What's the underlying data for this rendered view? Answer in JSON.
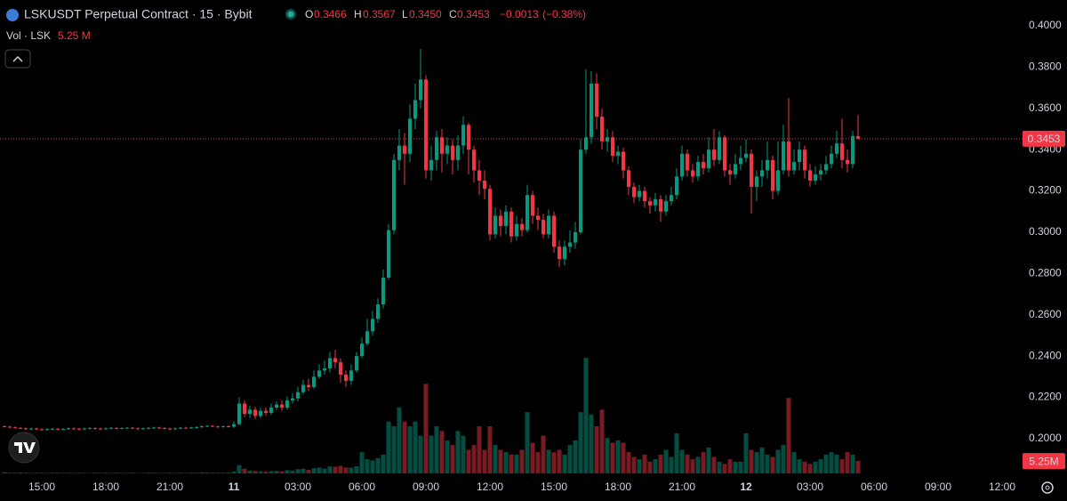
{
  "chart_data": {
    "type": "candlestick",
    "title": "LSKUSDT Perpetual Contract · 15 · Bybit",
    "legend": {
      "o": "O",
      "h": "H",
      "l": "L",
      "c": "C",
      "open": {
        "value": 0.3466,
        "label": "0.3466"
      },
      "high": {
        "value": 0.3567,
        "label": "0.3567"
      },
      "low": {
        "value": 0.345,
        "label": "0.3450"
      },
      "close": {
        "value": 0.3453,
        "label": "0.3453"
      },
      "change": {
        "value": -0.0013,
        "label": "−0.0013"
      },
      "change_pct": {
        "value": -0.38,
        "label": "(−0.38%)"
      }
    },
    "volume_legend": {
      "title": "Vol · LSK",
      "value": {
        "value": 5.25,
        "label": "5.25 M"
      }
    },
    "last_price": {
      "value": 0.3453,
      "label": "0.3453"
    },
    "last_volume": {
      "value": 5.25,
      "label": "5.25M"
    },
    "up_color": "#089981",
    "down_color": "#f23645",
    "ylim": [
      0.181,
      0.4125
    ],
    "yticks": [
      {
        "value": 0.2,
        "label": "0.2000"
      },
      {
        "value": 0.22,
        "label": "0.2200"
      },
      {
        "value": 0.24,
        "label": "0.2400"
      },
      {
        "value": 0.26,
        "label": "0.2600"
      },
      {
        "value": 0.28,
        "label": "0.2800"
      },
      {
        "value": 0.3,
        "label": "0.3000"
      },
      {
        "value": 0.32,
        "label": "0.3200"
      },
      {
        "value": 0.34,
        "label": "0.3400"
      },
      {
        "value": 0.36,
        "label": "0.3600"
      },
      {
        "value": 0.38,
        "label": "0.3800"
      },
      {
        "value": 0.4,
        "label": "0.4000"
      }
    ],
    "categories": [
      null,
      null,
      null,
      null,
      null,
      null,
      null,
      "15:00",
      null,
      null,
      null,
      null,
      null,
      null,
      null,
      null,
      null,
      null,
      null,
      "18:00",
      null,
      null,
      null,
      null,
      null,
      null,
      null,
      null,
      null,
      null,
      null,
      "21:00",
      null,
      null,
      null,
      null,
      null,
      null,
      null,
      null,
      null,
      null,
      null,
      "11",
      null,
      null,
      null,
      null,
      null,
      null,
      null,
      null,
      null,
      null,
      null,
      "03:00",
      null,
      null,
      null,
      null,
      null,
      null,
      null,
      null,
      null,
      null,
      null,
      "06:00",
      null,
      null,
      null,
      null,
      null,
      null,
      null,
      null,
      null,
      null,
      null,
      "09:00",
      null,
      null,
      null,
      null,
      null,
      null,
      null,
      null,
      null,
      null,
      null,
      "12:00",
      null,
      null,
      null,
      null,
      null,
      null,
      null,
      null,
      null,
      null,
      null,
      "15:00",
      null,
      null,
      null,
      null,
      null,
      null,
      null,
      null,
      null,
      null,
      null,
      "18:00",
      null,
      null,
      null,
      null,
      null,
      null,
      null,
      null,
      null,
      null,
      null,
      "21:00",
      null,
      null,
      null,
      null,
      null,
      null,
      null,
      null,
      null,
      null,
      null,
      "12",
      null,
      null,
      null,
      null,
      null,
      null,
      null,
      null,
      null,
      null,
      null,
      "03:00",
      null,
      null,
      null,
      null,
      null,
      null,
      null,
      null,
      null,
      null,
      null,
      "06:00",
      null,
      null,
      null,
      null,
      null,
      null,
      null,
      null,
      null,
      null,
      null,
      "09:00",
      null,
      null,
      null,
      null,
      null,
      null,
      null,
      null,
      null,
      null,
      null,
      "12:00",
      null
    ],
    "open": [
      0.206,
      0.2058,
      0.2055,
      0.2052,
      0.205,
      0.2047,
      0.2049,
      0.2045,
      0.2043,
      0.2046,
      0.2048,
      0.2045,
      0.2047,
      0.205,
      0.2048,
      0.2046,
      0.2049,
      0.2051,
      0.2049,
      0.2047,
      0.205,
      0.2052,
      0.2049,
      0.2051,
      0.2053,
      0.205,
      0.2048,
      0.205,
      0.2052,
      0.2054,
      0.2051,
      0.2049,
      0.2047,
      0.205,
      0.2053,
      0.2051,
      0.2054,
      0.2056,
      0.206,
      0.2062,
      0.2059,
      0.2057,
      0.206,
      0.2058,
      0.207,
      0.217,
      0.212,
      0.214,
      0.211,
      0.2135,
      0.2125,
      0.215,
      0.2165,
      0.215,
      0.2185,
      0.2195,
      0.2225,
      0.226,
      0.225,
      0.23,
      0.233,
      0.234,
      0.239,
      0.237,
      0.231,
      0.228,
      0.233,
      0.24,
      0.246,
      0.252,
      0.258,
      0.265,
      0.278,
      0.301,
      0.335,
      0.342,
      0.338,
      0.355,
      0.364,
      0.374,
      0.33,
      0.335,
      0.346,
      0.338,
      0.342,
      0.335,
      0.342,
      0.352,
      0.34,
      0.33,
      0.325,
      0.321,
      0.299,
      0.308,
      0.303,
      0.31,
      0.298,
      0.304,
      0.301,
      0.318,
      0.308,
      0.306,
      0.299,
      0.308,
      0.293,
      0.287,
      0.293,
      0.295,
      0.3,
      0.34,
      0.346,
      0.372,
      0.356,
      0.344,
      0.346,
      0.337,
      0.339,
      0.33,
      0.322,
      0.317,
      0.32,
      0.315,
      0.313,
      0.316,
      0.31,
      0.315,
      0.318,
      0.327,
      0.338,
      0.33,
      0.327,
      0.334,
      0.331,
      0.34,
      0.335,
      0.346,
      0.33,
      0.328,
      0.333,
      0.336,
      0.338,
      0.322,
      0.327,
      0.33,
      0.335,
      0.32,
      0.33,
      0.344,
      0.33,
      0.334,
      0.34,
      0.33,
      0.325,
      0.328,
      0.33,
      0.333,
      0.338,
      0.343,
      0.335,
      0.333,
      0.3466,
      null,
      null,
      null,
      null,
      null,
      null,
      null,
      null,
      null,
      null,
      null,
      null,
      null,
      null,
      null,
      null,
      null,
      null,
      null,
      null,
      null,
      null,
      null,
      null,
      null,
      null,
      null,
      null
    ],
    "high": [
      0.2064,
      0.2062,
      0.2059,
      0.2056,
      0.2054,
      0.2053,
      0.2053,
      0.2049,
      0.205,
      0.2052,
      0.2052,
      0.2051,
      0.2054,
      0.2054,
      0.2052,
      0.2053,
      0.2055,
      0.2055,
      0.2053,
      0.2054,
      0.2056,
      0.2056,
      0.2055,
      0.2057,
      0.2057,
      0.2054,
      0.2054,
      0.2056,
      0.2058,
      0.2058,
      0.2055,
      0.2053,
      0.2054,
      0.2057,
      0.2057,
      0.2058,
      0.206,
      0.2064,
      0.2066,
      0.2066,
      0.2063,
      0.2064,
      0.2064,
      0.2085,
      0.22,
      0.2185,
      0.216,
      0.2155,
      0.215,
      0.215,
      0.217,
      0.218,
      0.2185,
      0.2205,
      0.222,
      0.225,
      0.2285,
      0.229,
      0.233,
      0.236,
      0.238,
      0.242,
      0.243,
      0.239,
      0.233,
      0.236,
      0.242,
      0.249,
      0.258,
      0.262,
      0.268,
      0.282,
      0.304,
      0.338,
      0.35,
      0.348,
      0.362,
      0.372,
      0.3888,
      0.376,
      0.342,
      0.349,
      0.35,
      0.346,
      0.345,
      0.347,
      0.356,
      0.353,
      0.342,
      0.335,
      0.33,
      0.323,
      0.312,
      0.311,
      0.313,
      0.312,
      0.308,
      0.307,
      0.323,
      0.32,
      0.312,
      0.309,
      0.311,
      0.31,
      0.296,
      0.296,
      0.301,
      0.305,
      0.345,
      0.379,
      0.378,
      0.377,
      0.36,
      0.35,
      0.349,
      0.342,
      0.341,
      0.332,
      0.324,
      0.323,
      0.322,
      0.317,
      0.319,
      0.318,
      0.318,
      0.322,
      0.331,
      0.342,
      0.34,
      0.333,
      0.337,
      0.338,
      0.346,
      0.35,
      0.349,
      0.347,
      0.333,
      0.338,
      0.342,
      0.345,
      0.34,
      0.33,
      0.335,
      0.344,
      0.337,
      0.344,
      0.352,
      0.365,
      0.34,
      0.344,
      0.342,
      0.333,
      0.332,
      0.333,
      0.337,
      0.342,
      0.349,
      0.355,
      0.34,
      0.349,
      0.3567,
      null,
      null,
      null,
      null,
      null,
      null,
      null,
      null,
      null,
      null,
      null,
      null,
      null,
      null,
      null,
      null,
      null,
      null,
      null,
      null,
      null,
      null,
      null,
      null,
      null,
      null,
      null,
      null
    ],
    "low": [
      0.2054,
      0.2051,
      0.2048,
      0.2046,
      0.2043,
      0.2043,
      0.2041,
      0.2039,
      0.2039,
      0.2042,
      0.2041,
      0.2041,
      0.2043,
      0.2044,
      0.2042,
      0.2042,
      0.2045,
      0.2045,
      0.2043,
      0.2043,
      0.2046,
      0.2045,
      0.2045,
      0.2047,
      0.2046,
      0.2044,
      0.2044,
      0.2046,
      0.2048,
      0.2047,
      0.2045,
      0.2043,
      0.2043,
      0.2046,
      0.2047,
      0.2047,
      0.205,
      0.2052,
      0.2056,
      0.2055,
      0.2053,
      0.2053,
      0.2054,
      0.2052,
      0.2065,
      0.2105,
      0.21,
      0.2095,
      0.21,
      0.211,
      0.2115,
      0.214,
      0.2135,
      0.214,
      0.217,
      0.218,
      0.2215,
      0.223,
      0.224,
      0.229,
      0.231,
      0.232,
      0.234,
      0.227,
      0.225,
      0.226,
      0.232,
      0.239,
      0.245,
      0.25,
      0.256,
      0.263,
      0.277,
      0.299,
      0.33,
      0.323,
      0.334,
      0.35,
      0.36,
      0.326,
      0.325,
      0.33,
      0.329,
      0.333,
      0.328,
      0.33,
      0.338,
      0.328,
      0.324,
      0.318,
      0.316,
      0.296,
      0.297,
      0.298,
      0.299,
      0.295,
      0.296,
      0.298,
      0.3,
      0.304,
      0.301,
      0.297,
      0.297,
      0.29,
      0.283,
      0.284,
      0.29,
      0.292,
      0.299,
      0.338,
      0.343,
      0.35,
      0.34,
      0.339,
      0.334,
      0.333,
      0.326,
      0.318,
      0.314,
      0.315,
      0.312,
      0.309,
      0.31,
      0.305,
      0.308,
      0.313,
      0.316,
      0.325,
      0.327,
      0.324,
      0.325,
      0.328,
      0.329,
      0.332,
      0.333,
      0.327,
      0.323,
      0.326,
      0.33,
      0.334,
      0.309,
      0.315,
      0.322,
      0.326,
      0.316,
      0.318,
      0.328,
      0.327,
      0.328,
      0.33,
      0.326,
      0.322,
      0.323,
      0.325,
      0.328,
      0.331,
      0.336,
      0.331,
      0.329,
      0.331,
      0.345,
      null,
      null,
      null,
      null,
      null,
      null,
      null,
      null,
      null,
      null,
      null,
      null,
      null,
      null,
      null,
      null,
      null,
      null,
      null,
      null,
      null,
      null,
      null,
      null,
      null,
      null,
      null,
      null
    ],
    "close": [
      0.2058,
      0.2055,
      0.2052,
      0.205,
      0.2047,
      0.2049,
      0.2045,
      0.2043,
      0.2046,
      0.2048,
      0.2045,
      0.2047,
      0.205,
      0.2048,
      0.2046,
      0.2049,
      0.2051,
      0.2049,
      0.2047,
      0.205,
      0.2052,
      0.2049,
      0.2051,
      0.2053,
      0.205,
      0.2048,
      0.205,
      0.2052,
      0.2054,
      0.2051,
      0.2049,
      0.2047,
      0.205,
      0.2053,
      0.2051,
      0.2054,
      0.2056,
      0.206,
      0.2062,
      0.2059,
      0.2057,
      0.206,
      0.2058,
      0.207,
      0.217,
      0.212,
      0.214,
      0.211,
      0.2135,
      0.2125,
      0.215,
      0.2165,
      0.215,
      0.2185,
      0.2195,
      0.2225,
      0.226,
      0.225,
      0.23,
      0.233,
      0.234,
      0.239,
      0.237,
      0.231,
      0.228,
      0.233,
      0.24,
      0.246,
      0.252,
      0.258,
      0.265,
      0.278,
      0.301,
      0.335,
      0.342,
      0.338,
      0.355,
      0.364,
      0.374,
      0.33,
      0.335,
      0.346,
      0.338,
      0.342,
      0.335,
      0.342,
      0.352,
      0.34,
      0.33,
      0.325,
      0.321,
      0.299,
      0.308,
      0.303,
      0.31,
      0.298,
      0.304,
      0.301,
      0.318,
      0.308,
      0.306,
      0.299,
      0.308,
      0.293,
      0.287,
      0.293,
      0.295,
      0.3,
      0.34,
      0.346,
      0.372,
      0.356,
      0.344,
      0.346,
      0.337,
      0.339,
      0.33,
      0.322,
      0.317,
      0.32,
      0.315,
      0.313,
      0.316,
      0.31,
      0.315,
      0.318,
      0.327,
      0.338,
      0.33,
      0.327,
      0.334,
      0.331,
      0.34,
      0.335,
      0.346,
      0.33,
      0.328,
      0.333,
      0.336,
      0.338,
      0.322,
      0.327,
      0.33,
      0.335,
      0.32,
      0.33,
      0.344,
      0.33,
      0.334,
      0.34,
      0.33,
      0.325,
      0.328,
      0.33,
      0.333,
      0.338,
      0.343,
      0.335,
      0.333,
      0.3466,
      0.3453,
      null,
      null,
      null,
      null,
      null,
      null,
      null,
      null,
      null,
      null,
      null,
      null,
      null,
      null,
      null,
      null,
      null,
      null,
      null,
      null,
      null,
      null,
      null,
      null,
      null,
      null,
      null,
      null
    ],
    "volume": [
      0.5,
      0.3,
      0.3,
      0.4,
      0.3,
      0.2,
      0.3,
      0.3,
      0.2,
      0.3,
      0.3,
      0.2,
      0.3,
      0.2,
      0.3,
      0.2,
      0.2,
      0.3,
      0.2,
      0.3,
      0.2,
      0.3,
      0.2,
      0.2,
      0.3,
      0.2,
      0.2,
      0.3,
      0.3,
      0.2,
      0.2,
      0.3,
      0.2,
      0.3,
      0.2,
      0.3,
      0.3,
      0.5,
      0.4,
      0.3,
      0.3,
      0.3,
      0.3,
      0.8,
      3.5,
      2,
      1.2,
      1,
      0.9,
      0.8,
      1,
      1.1,
      0.9,
      1.4,
      1.2,
      1.8,
      2,
      1.5,
      2.2,
      2.5,
      2,
      3,
      2.8,
      3.2,
      2.5,
      2.4,
      3,
      9,
      6,
      5.5,
      6.5,
      8,
      22,
      20,
      28,
      22,
      20,
      22,
      16,
      38,
      16,
      20,
      18,
      14,
      12,
      18,
      16,
      10,
      12,
      20,
      10,
      20,
      12,
      10,
      9,
      8,
      8,
      10,
      26,
      13,
      9,
      16,
      10,
      9,
      10,
      8,
      12,
      14,
      26,
      49,
      25,
      20,
      27,
      15,
      13,
      14,
      13,
      9,
      7,
      6,
      8,
      5,
      6,
      8,
      10,
      7,
      17,
      10,
      8,
      6,
      7,
      9,
      11,
      7,
      5,
      4,
      6,
      5,
      5,
      17,
      10,
      9,
      11,
      8,
      7,
      10,
      12,
      32,
      9,
      6,
      5,
      4,
      5,
      6,
      8,
      9,
      8,
      6,
      9,
      8,
      5.25,
      null,
      null,
      null,
      null,
      null,
      null,
      null,
      null,
      null,
      null,
      null,
      null,
      null,
      null,
      null,
      null,
      null,
      null,
      null,
      null,
      null,
      null,
      null,
      null,
      null,
      null,
      null,
      null
    ]
  }
}
